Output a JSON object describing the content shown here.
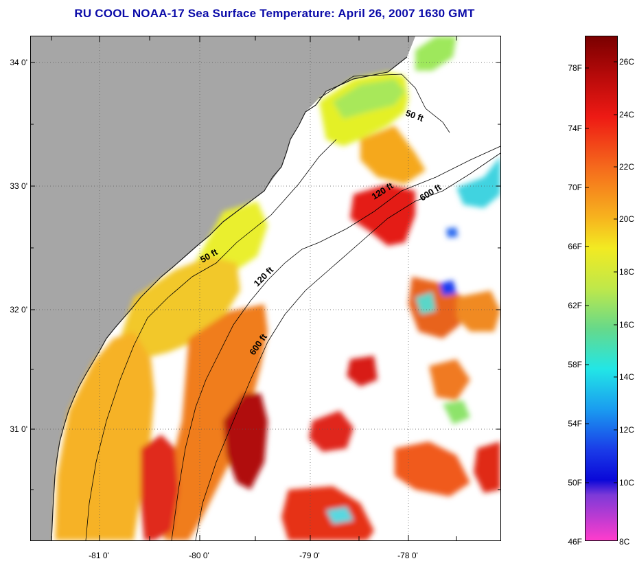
{
  "title": "RU COOL  NOAA-17  Sea Surface Temperature:  April 26, 2007 1630 GMT",
  "lat_labels": [
    "34 0'",
    "33 0'",
    "32 0'",
    "31 0'"
  ],
  "lon_labels": [
    "-81 0'",
    "-80 0'",
    "-79 0'",
    "-78 0'"
  ],
  "isobath_labels": [
    "50 ft",
    "120 ft",
    "600 ft",
    "50 ft",
    "120 ft",
    "600 ft"
  ],
  "colorbar": {
    "fahrenheit": [
      "78F",
      "74F",
      "70F",
      "66F",
      "62F",
      "58F",
      "54F",
      "50F",
      "46F"
    ],
    "celsius": [
      "26C",
      "24C",
      "22C",
      "20C",
      "18C",
      "16C",
      "14C",
      "12C",
      "10C",
      "8C"
    ]
  },
  "colors": {
    "title": "#0a0aa8",
    "land": "#a6a6a6",
    "cloud": "#ffffff"
  }
}
